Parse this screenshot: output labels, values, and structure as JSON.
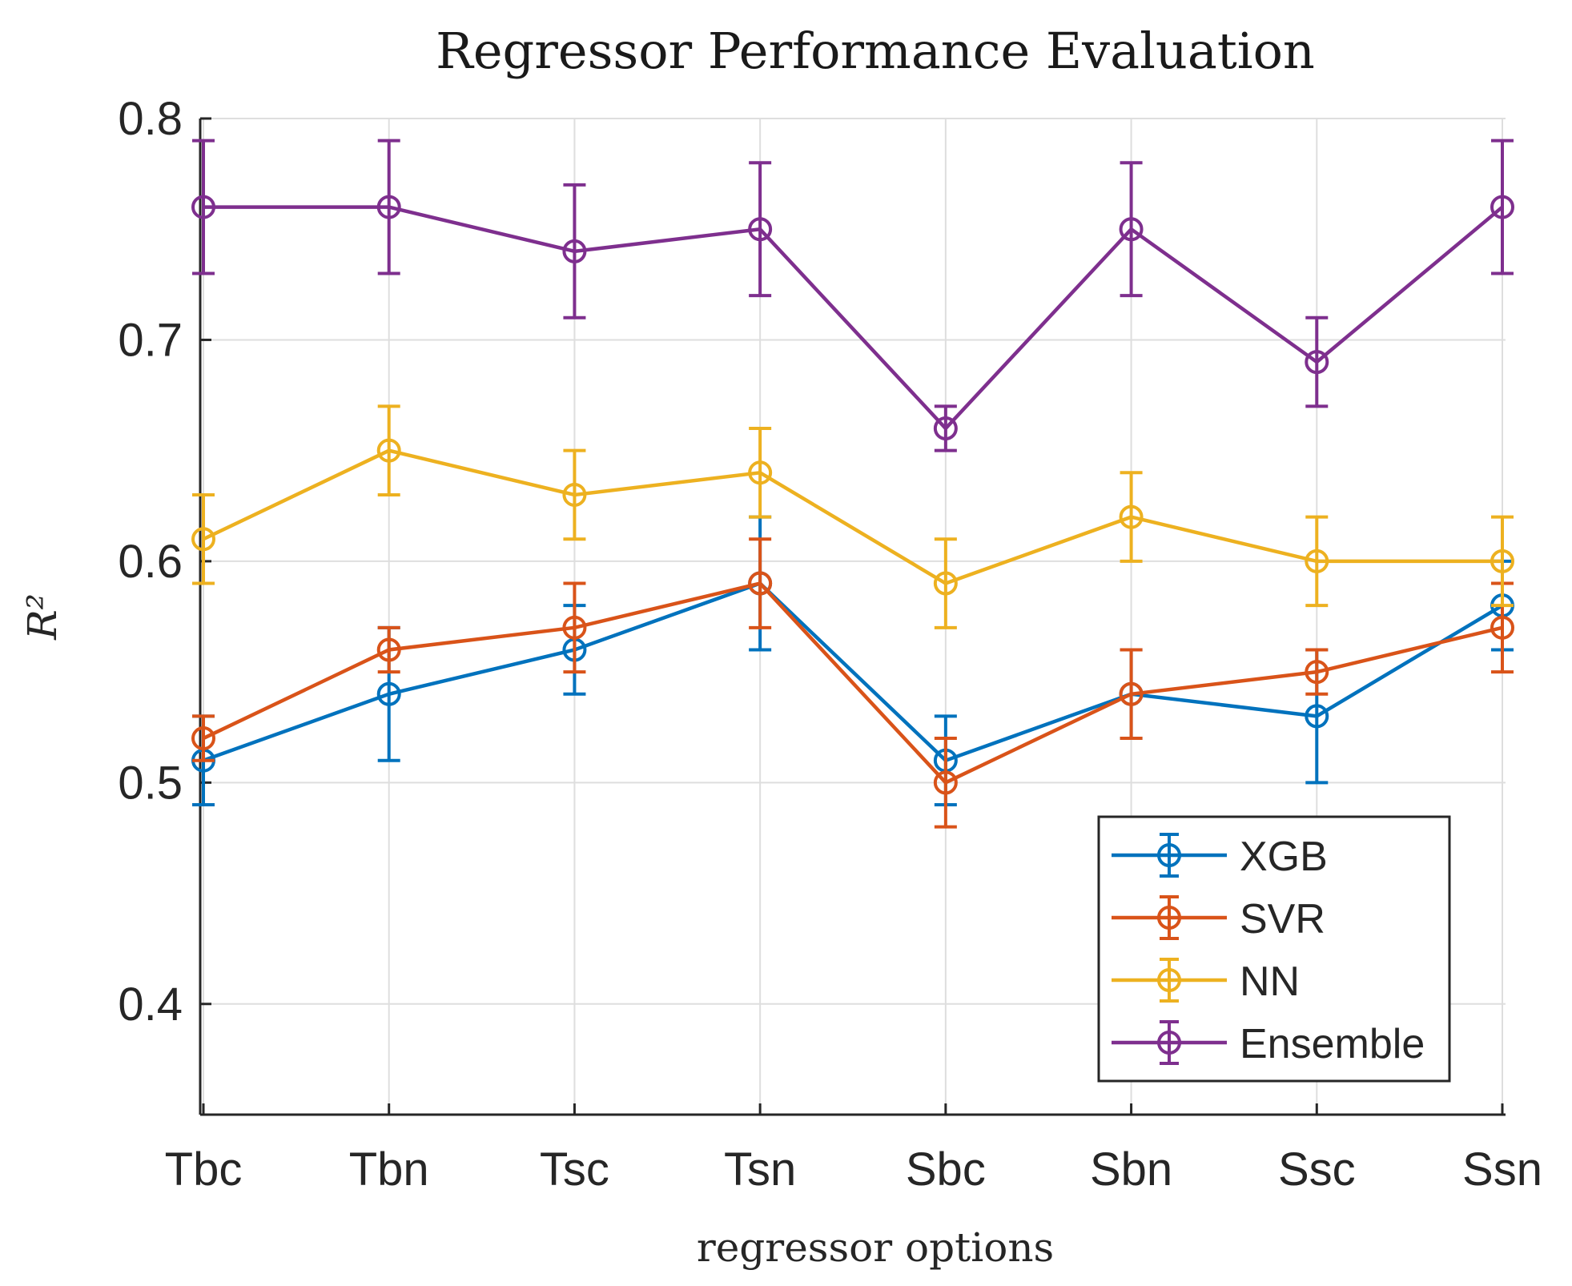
{
  "chart_data": {
    "type": "line",
    "title": "Regressor Performance Evaluation",
    "xlabel": "regressor options",
    "ylabel": "R²",
    "ylim": [
      0.35,
      0.8
    ],
    "yticks": [
      0.4,
      0.5,
      0.6,
      0.7,
      0.8
    ],
    "ytick_labels": [
      "0.4",
      "0.5",
      "0.6",
      "0.7",
      "0.8"
    ],
    "grid": true,
    "legend_position": "bottom-right",
    "categories": [
      "Tbc",
      "Tbn",
      "Tsc",
      "Tsn",
      "Sbc",
      "Sbn",
      "Ssc",
      "Ssn"
    ],
    "series": [
      {
        "name": "XGB",
        "color": "#0072BD",
        "values": [
          0.51,
          0.54,
          0.56,
          0.59,
          0.51,
          0.54,
          0.53,
          0.58
        ],
        "errors": [
          0.02,
          0.03,
          0.02,
          0.03,
          0.02,
          0.02,
          0.03,
          0.02
        ]
      },
      {
        "name": "SVR",
        "color": "#D95319",
        "values": [
          0.52,
          0.56,
          0.57,
          0.59,
          0.5,
          0.54,
          0.55,
          0.57
        ],
        "errors": [
          0.01,
          0.01,
          0.02,
          0.02,
          0.02,
          0.02,
          0.01,
          0.02
        ]
      },
      {
        "name": "NN",
        "color": "#EDB120",
        "values": [
          0.61,
          0.65,
          0.63,
          0.64,
          0.59,
          0.62,
          0.6,
          0.6
        ],
        "errors": [
          0.02,
          0.02,
          0.02,
          0.02,
          0.02,
          0.02,
          0.02,
          0.02
        ]
      },
      {
        "name": "Ensemble",
        "color": "#7E2F8E",
        "values": [
          0.76,
          0.76,
          0.74,
          0.75,
          0.66,
          0.75,
          0.69,
          0.76
        ],
        "errors": [
          0.03,
          0.03,
          0.03,
          0.03,
          0.01,
          0.03,
          0.02,
          0.03
        ]
      }
    ]
  }
}
